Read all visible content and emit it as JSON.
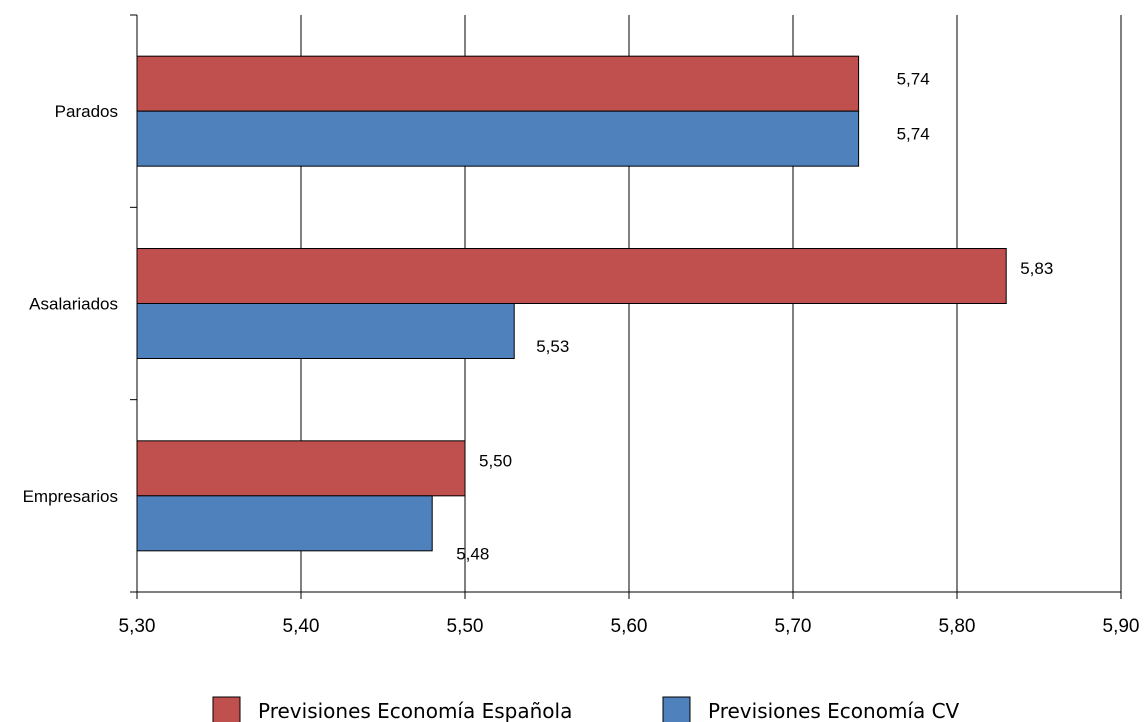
{
  "chart_data": {
    "type": "bar",
    "orientation": "horizontal",
    "title": "",
    "xlabel": "",
    "ylabel": "",
    "xlim": [
      5.3,
      5.9
    ],
    "x_ticks": [
      5.3,
      5.4,
      5.5,
      5.6,
      5.7,
      5.8,
      5.9
    ],
    "x_tick_labels": [
      "5,30",
      "5,40",
      "5,50",
      "5,60",
      "5,70",
      "5,80",
      "5,90"
    ],
    "grid": "vertical",
    "legend_position": "bottom",
    "categories": [
      "Parados",
      "Asalariados",
      "Empresarios"
    ],
    "series": [
      {
        "name": "Previsiones Economía Española",
        "color": "#c0504d",
        "values": [
          5.74,
          5.83,
          5.5
        ],
        "labels": [
          "5,74",
          "5,83",
          "5,50"
        ]
      },
      {
        "name": "Previsiones Economía CV",
        "color": "#4f81bd",
        "values": [
          5.74,
          5.53,
          5.48
        ],
        "labels": [
          "5,74",
          "5,53",
          "5,48"
        ]
      }
    ]
  }
}
